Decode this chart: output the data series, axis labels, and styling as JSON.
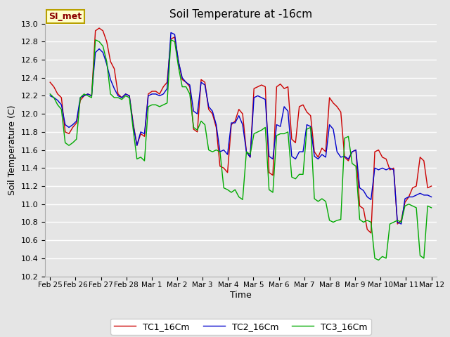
{
  "title": "Soil Temperature at -16cm",
  "xlabel": "Time",
  "ylabel": "Soil Temperature (C)",
  "ylim": [
    10.2,
    13.0
  ],
  "background_color": "#e5e5e5",
  "plot_bg_color": "#e5e5e5",
  "grid_color": "white",
  "legend_label": "SI_met",
  "series_colors": [
    "#cc0000",
    "#0000cc",
    "#00aa00"
  ],
  "series_names": [
    "TC1_16Cm",
    "TC2_16Cm",
    "TC3_16Cm"
  ],
  "xtick_labels": [
    "Feb 25",
    "Feb 26",
    "Feb 27",
    "Feb 28",
    "Mar 1",
    "Mar 2",
    "Mar 3",
    "Mar 4",
    "Mar 5",
    "Mar 6",
    "Mar 7",
    "Mar 8",
    "Mar 9",
    "Mar 10",
    "Mar 11",
    "Mar 12"
  ],
  "tc1": [
    12.35,
    12.3,
    12.22,
    12.18,
    11.8,
    11.78,
    11.85,
    11.9,
    12.15,
    12.2,
    12.22,
    12.2,
    12.92,
    12.95,
    12.92,
    12.8,
    12.58,
    12.5,
    12.22,
    12.18,
    12.22,
    12.2,
    11.9,
    11.65,
    11.78,
    11.75,
    12.22,
    12.25,
    12.25,
    12.22,
    12.3,
    12.35,
    12.83,
    12.85,
    12.58,
    12.38,
    12.35,
    12.3,
    11.83,
    11.8,
    12.38,
    12.35,
    12.05,
    12.0,
    11.85,
    11.42,
    11.4,
    11.35,
    11.88,
    11.92,
    12.05,
    12.0,
    11.58,
    11.52,
    12.28,
    12.3,
    12.32,
    12.3,
    11.35,
    11.32,
    12.3,
    12.33,
    12.28,
    12.3,
    11.72,
    11.68,
    12.08,
    12.1,
    12.02,
    11.98,
    11.58,
    11.52,
    11.62,
    11.58,
    12.18,
    12.12,
    12.08,
    12.02,
    11.52,
    11.48,
    11.58,
    11.6,
    10.98,
    10.95,
    10.72,
    10.68,
    11.58,
    11.6,
    11.52,
    11.5,
    11.38,
    11.4,
    10.78,
    10.82,
    11.02,
    11.08,
    11.18,
    11.2,
    11.52,
    11.48,
    11.18,
    11.2
  ],
  "tc2": [
    12.2,
    12.18,
    12.15,
    12.1,
    11.88,
    11.85,
    11.88,
    11.92,
    12.18,
    12.2,
    12.22,
    12.2,
    12.68,
    12.72,
    12.68,
    12.55,
    12.38,
    12.28,
    12.2,
    12.18,
    12.22,
    12.2,
    11.88,
    11.65,
    11.8,
    11.78,
    12.2,
    12.22,
    12.22,
    12.2,
    12.22,
    12.28,
    12.9,
    12.88,
    12.58,
    12.4,
    12.35,
    12.32,
    12.03,
    12.0,
    12.35,
    12.32,
    12.08,
    12.03,
    11.88,
    11.58,
    11.6,
    11.55,
    11.9,
    11.9,
    11.98,
    11.88,
    11.58,
    11.52,
    12.18,
    12.2,
    12.18,
    12.16,
    11.53,
    11.5,
    11.88,
    11.86,
    12.08,
    12.03,
    11.53,
    11.5,
    11.58,
    11.58,
    11.88,
    11.86,
    11.53,
    11.5,
    11.55,
    11.52,
    11.88,
    11.83,
    11.58,
    11.52,
    11.53,
    11.5,
    11.58,
    11.6,
    11.18,
    11.15,
    11.08,
    11.05,
    11.4,
    11.38,
    11.4,
    11.38,
    11.4,
    11.38,
    10.8,
    10.78,
    11.06,
    11.08,
    11.08,
    11.1,
    11.12,
    11.1,
    11.1,
    11.08
  ],
  "tc3": [
    12.22,
    12.18,
    12.1,
    12.05,
    11.68,
    11.65,
    11.68,
    11.72,
    12.18,
    12.22,
    12.2,
    12.18,
    12.82,
    12.8,
    12.75,
    12.58,
    12.22,
    12.18,
    12.18,
    12.16,
    12.2,
    12.18,
    11.83,
    11.5,
    11.52,
    11.48,
    12.08,
    12.1,
    12.1,
    12.08,
    12.1,
    12.12,
    12.82,
    12.8,
    12.52,
    12.3,
    12.3,
    12.22,
    11.85,
    11.82,
    11.92,
    11.88,
    11.6,
    11.58,
    11.6,
    11.58,
    11.18,
    11.16,
    11.13,
    11.16,
    11.08,
    11.05,
    11.58,
    11.55,
    11.78,
    11.8,
    11.82,
    11.85,
    11.16,
    11.13,
    11.76,
    11.78,
    11.78,
    11.8,
    11.3,
    11.28,
    11.33,
    11.33,
    11.83,
    11.85,
    11.06,
    11.03,
    11.06,
    11.03,
    10.82,
    10.8,
    10.82,
    10.83,
    11.73,
    11.75,
    11.45,
    11.42,
    10.83,
    10.8,
    10.82,
    10.8,
    10.4,
    10.38,
    10.42,
    10.4,
    10.78,
    10.8,
    10.82,
    10.8,
    10.98,
    11.0,
    10.98,
    10.96,
    10.43,
    10.4,
    10.98,
    10.96
  ]
}
